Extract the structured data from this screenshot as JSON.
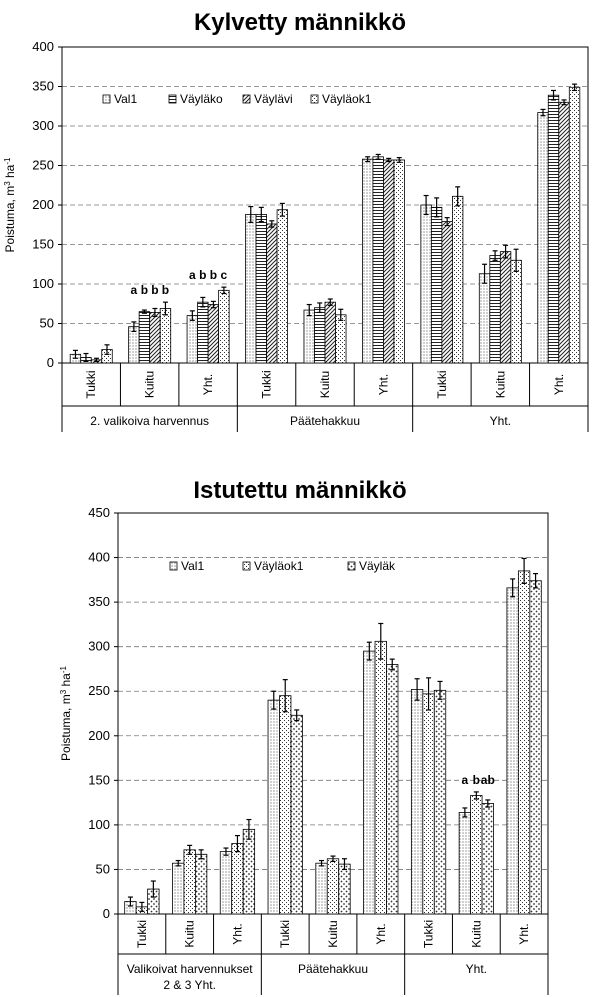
{
  "chart_data": [
    {
      "type": "bar",
      "title": "Kylvetty männikkö",
      "ylabel": "Poistuma, m³ ha⁻¹",
      "ylabel_parts": [
        "Poistuma, m",
        "3",
        " ha",
        "-1"
      ],
      "ylim": [
        0,
        400
      ],
      "yticks": [
        0,
        50,
        100,
        150,
        200,
        250,
        300,
        350,
        400
      ],
      "grid": true,
      "legend_placement": "top-left",
      "categories": [
        "Tukki",
        "Kuitu",
        "Yht.",
        "Tukki",
        "Kuitu",
        "Yht.",
        "Tukki",
        "Kuitu",
        "Yht."
      ],
      "groups": [
        {
          "label": "2. valikoiva harvennus",
          "start": 0,
          "end": 2
        },
        {
          "label": "Päätehakkuu",
          "start": 3,
          "end": 5
        },
        {
          "label": "Yht.",
          "start": 6,
          "end": 8
        }
      ],
      "series": [
        {
          "name": "Val1",
          "pattern": "dots",
          "values": [
            11,
            46,
            60,
            188,
            67,
            258,
            200,
            113,
            317
          ],
          "errors": [
            5,
            6,
            6,
            10,
            7,
            3,
            12,
            12,
            4
          ]
        },
        {
          "name": "Väyläko",
          "pattern": "hlines",
          "values": [
            7,
            65,
            77,
            188,
            70,
            261,
            197,
            136,
            339
          ],
          "errors": [
            5,
            2,
            6,
            9,
            6,
            3,
            12,
            6,
            6
          ]
        },
        {
          "name": "Väylävi",
          "pattern": "diag",
          "values": [
            4,
            64,
            74,
            176,
            77,
            257,
            179,
            141,
            330
          ],
          "errors": [
            2,
            5,
            4,
            4,
            4,
            2,
            5,
            8,
            3
          ]
        },
        {
          "name": "Väyläok1",
          "pattern": "xdots",
          "values": [
            17,
            69,
            92,
            194,
            61,
            257,
            211,
            130,
            349
          ],
          "errors": [
            6,
            8,
            4,
            8,
            7,
            3,
            12,
            14,
            4
          ]
        }
      ],
      "annotations": [
        {
          "category_index": 1,
          "labels": [
            "a",
            "b",
            "b",
            "b"
          ]
        },
        {
          "category_index": 2,
          "labels": [
            "a",
            "b",
            "b",
            "c"
          ]
        }
      ]
    },
    {
      "type": "bar",
      "title": "Istutettu männikkö",
      "ylabel": "Poistuma, m³ ha⁻¹",
      "ylabel_parts": [
        "Poistuma, m",
        "3",
        " ha",
        "-1"
      ],
      "ylim": [
        0,
        450
      ],
      "yticks": [
        0,
        50,
        100,
        150,
        200,
        250,
        300,
        350,
        400,
        450
      ],
      "grid": true,
      "legend_placement": "top-left",
      "categories": [
        "Tukki",
        "Kuitu",
        "Yht.",
        "Tukki",
        "Kuitu",
        "Yht.",
        "Tukki",
        "Kuitu",
        "Yht."
      ],
      "groups": [
        {
          "label": "Valikoivat harvennukset 2 & 3 Yht.",
          "lines": [
            "Valikoivat harvennukset",
            "2 & 3 Yht."
          ],
          "start": 0,
          "end": 2
        },
        {
          "label": "Päätehakkuu",
          "start": 3,
          "end": 5
        },
        {
          "label": "Yht.",
          "start": 6,
          "end": 8
        }
      ],
      "series": [
        {
          "name": "Val1",
          "pattern": "dots",
          "values": [
            14,
            57,
            70,
            240,
            57,
            295,
            252,
            114,
            366
          ],
          "errors": [
            5,
            3,
            4,
            10,
            3,
            10,
            12,
            5,
            10
          ]
        },
        {
          "name": "Väyläok1",
          "pattern": "xdots",
          "values": [
            8,
            72,
            79,
            245,
            62,
            306,
            247,
            133,
            385
          ],
          "errors": [
            5,
            5,
            9,
            18,
            3,
            20,
            18,
            4,
            14
          ]
        },
        {
          "name": "Väyläk",
          "pattern": "bigdots",
          "values": [
            28,
            67,
            95,
            223,
            56,
            280,
            251,
            124,
            374
          ],
          "errors": [
            9,
            5,
            11,
            6,
            6,
            6,
            10,
            4,
            8
          ]
        }
      ],
      "annotations": [
        {
          "category_index": 7,
          "labels": [
            "a",
            "b",
            "ab"
          ]
        }
      ]
    }
  ]
}
